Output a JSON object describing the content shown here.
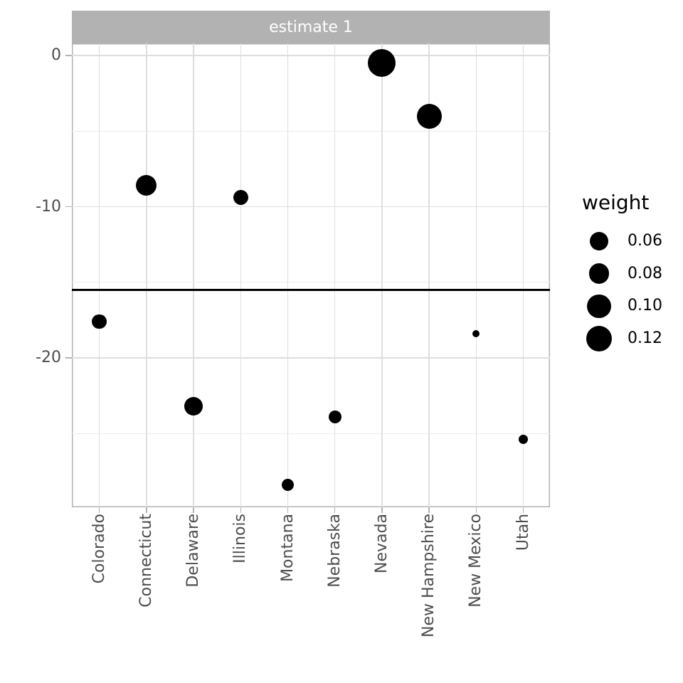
{
  "figure": {
    "facet_label": "estimate 1"
  },
  "chart_data": {
    "type": "scatter",
    "title": "estimate 1",
    "xlabel": "",
    "ylabel": "",
    "legend_position": "right",
    "grid": true,
    "x_categories": [
      "Colorado",
      "Connecticut",
      "Delaware",
      "Illinois",
      "Montana",
      "Nebraska",
      "Nevada",
      "New Hampshire",
      "New Mexico",
      "Utah"
    ],
    "points": [
      {
        "state": "Colorado",
        "estimate": -17.6,
        "weight": 0.038,
        "radius_px": 10.3
      },
      {
        "state": "Connecticut",
        "estimate": -8.6,
        "weight": 0.074,
        "radius_px": 14.5
      },
      {
        "state": "Delaware",
        "estimate": -23.2,
        "weight": 0.063,
        "radius_px": 13.3
      },
      {
        "state": "Illinois",
        "estimate": -9.4,
        "weight": 0.04,
        "radius_px": 10.5
      },
      {
        "state": "Montana",
        "estimate": -28.4,
        "weight": 0.026,
        "radius_px": 8.5
      },
      {
        "state": "Nebraska",
        "estimate": -23.9,
        "weight": 0.031,
        "radius_px": 9.2
      },
      {
        "state": "Nevada",
        "estimate": -0.5,
        "weight": 0.133,
        "radius_px": 19.5
      },
      {
        "state": "New Hampshire",
        "estimate": -4.0,
        "weight": 0.108,
        "radius_px": 17.5
      },
      {
        "state": "New Mexico",
        "estimate": -18.4,
        "weight": 0.01,
        "radius_px": 5.0
      },
      {
        "state": "Utah",
        "estimate": -25.4,
        "weight": 0.017,
        "radius_px": 6.7
      }
    ],
    "reference_line": {
      "value": -15.5
    },
    "y_axis": {
      "major_ticks": [
        0,
        -10,
        -20
      ],
      "major_tick_labels": [
        "0",
        "-10",
        "-20"
      ],
      "minor_gridlines": [
        -5,
        -15,
        -25
      ],
      "range": [
        -29.9,
        0.8
      ]
    },
    "size_legend": {
      "title": "weight",
      "entries": [
        {
          "label": "0.06",
          "radius_px": 13.0
        },
        {
          "label": "0.08",
          "radius_px": 14.3
        },
        {
          "label": "0.10",
          "radius_px": 16.6
        },
        {
          "label": "0.12",
          "radius_px": 18.3
        }
      ]
    }
  },
  "colors": {
    "background": "#ffffff",
    "strip_bg": "#b2b2b2",
    "strip_text": "#ffffff",
    "panel_border": "#b3b3b3",
    "grid_major": "#dedede",
    "grid_minor": "#ececec",
    "axis_text": "#4d4d4d",
    "tick": "#b3b3b3",
    "point": "#000000",
    "reference_line": "#000000",
    "legend_text": "#000000"
  }
}
